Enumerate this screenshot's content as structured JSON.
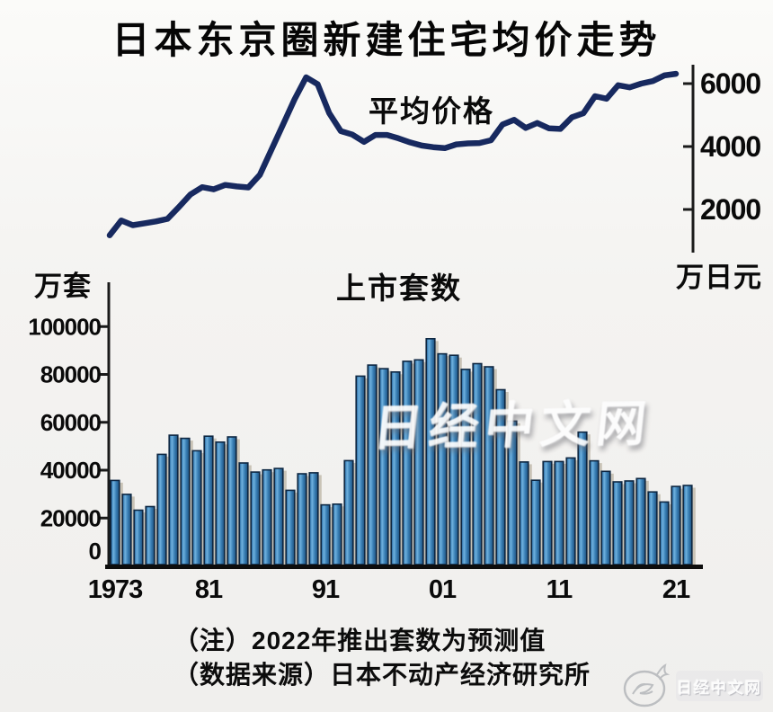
{
  "figure_title": "日本东京圈新建住宅均价走势",
  "notes": [
    "（注）2022年推出套数为预测值",
    "（数据来源）日本不动产经济研究所"
  ],
  "watermark": {
    "center_text": "日经中文网",
    "corner_text": "日经中文网"
  },
  "colors": {
    "background": "#f4f3f1",
    "line": "#17295f",
    "axis": "#1a1a1a",
    "text": "#0a0a0a",
    "bar_outline": "#0e2742",
    "bar_shadow": "#c9c3b6",
    "bar_gradient": [
      "#16395e",
      "#3f85bb",
      "#6fb0dd",
      "#3a80b6",
      "#1c4d79"
    ]
  },
  "chart_data": [
    {
      "type": "line",
      "title": "平均价格",
      "ylabel": "万日元",
      "yticks": [
        2000,
        4000,
        6000
      ],
      "ylim": [
        900,
        6600
      ],
      "grid": false,
      "legend_position": "none",
      "years": [
        1973,
        1974,
        1975,
        1976,
        1977,
        1978,
        1979,
        1980,
        1981,
        1982,
        1983,
        1984,
        1985,
        1986,
        1987,
        1988,
        1989,
        1990,
        1991,
        1992,
        1993,
        1994,
        1995,
        1996,
        1997,
        1998,
        1999,
        2000,
        2001,
        2002,
        2003,
        2004,
        2005,
        2006,
        2007,
        2008,
        2009,
        2010,
        2011,
        2012,
        2013,
        2014,
        2015,
        2016,
        2017,
        2018,
        2019,
        2020,
        2021,
        2022
      ],
      "values": [
        1180,
        1650,
        1500,
        1560,
        1620,
        1700,
        2080,
        2480,
        2710,
        2640,
        2780,
        2730,
        2700,
        3100,
        3900,
        4700,
        5500,
        6200,
        5980,
        5060,
        4490,
        4380,
        4150,
        4370,
        4370,
        4260,
        4130,
        4030,
        3980,
        3950,
        4070,
        4100,
        4110,
        4200,
        4700,
        4850,
        4590,
        4750,
        4580,
        4560,
        4930,
        5060,
        5600,
        5520,
        5950,
        5880,
        6000,
        6080,
        6260,
        6310
      ]
    },
    {
      "type": "bar",
      "title": "上市套数",
      "ylabel": "万套",
      "yticks": [
        0,
        20000,
        40000,
        60000,
        80000,
        100000
      ],
      "ylim": [
        0,
        106000
      ],
      "grid": false,
      "legend_position": "none",
      "x_tick_years": [
        1973,
        1981,
        1991,
        2001,
        2011,
        2021
      ],
      "x_tick_labels": [
        "1973",
        "81",
        "91",
        "01",
        "11",
        "21"
      ],
      "years": [
        1973,
        1974,
        1975,
        1976,
        1977,
        1978,
        1979,
        1980,
        1981,
        1982,
        1983,
        1984,
        1985,
        1986,
        1987,
        1988,
        1989,
        1990,
        1991,
        1992,
        1993,
        1994,
        1995,
        1996,
        1997,
        1998,
        1999,
        2000,
        2001,
        2002,
        2003,
        2004,
        2005,
        2006,
        2007,
        2008,
        2009,
        2010,
        2011,
        2012,
        2013,
        2014,
        2015,
        2016,
        2017,
        2018,
        2019,
        2020,
        2021,
        2022
      ],
      "values": [
        35700,
        29900,
        23300,
        24800,
        46600,
        54600,
        53300,
        48100,
        54200,
        51700,
        53900,
        43000,
        39200,
        40100,
        40700,
        31600,
        38500,
        38900,
        25500,
        25800,
        44000,
        79300,
        83900,
        82400,
        81000,
        85500,
        86100,
        94900,
        88600,
        88000,
        82100,
        84500,
        83200,
        73600,
        60500,
        43400,
        35800,
        43600,
        43600,
        45100,
        55900,
        43900,
        39500,
        35100,
        35500,
        36500,
        30900,
        26700,
        33200,
        33600
      ]
    }
  ]
}
